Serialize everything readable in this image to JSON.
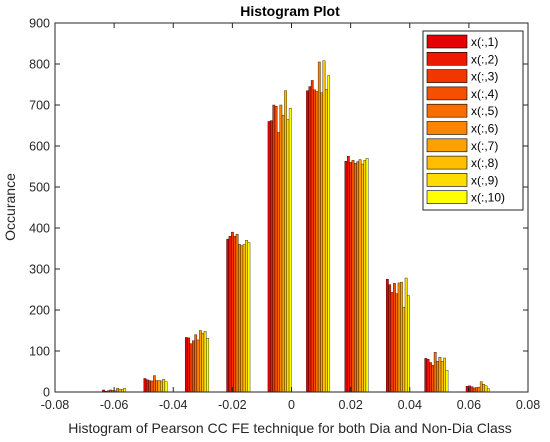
{
  "chart_data": {
    "type": "bar",
    "title": "Histogram Plot",
    "xlabel": "Histogram of Pearson CC FE technique for both Dia and Non-Dia Class",
    "ylabel": "Occurance",
    "xlim": [
      -0.08,
      0.08
    ],
    "ylim": [
      0,
      900
    ],
    "xticks": [
      -0.08,
      -0.06,
      -0.04,
      -0.02,
      0,
      0.02,
      0.04,
      0.06,
      0.08
    ],
    "yticks": [
      0,
      100,
      200,
      300,
      400,
      500,
      600,
      700,
      800,
      900
    ],
    "xtick_labels": [
      "-0.08",
      "-0.06",
      "-0.04",
      "-0.02",
      "0",
      "0.02",
      "0.04",
      "0.06",
      "0.08"
    ],
    "ytick_labels": [
      "0",
      "100",
      "200",
      "300",
      "400",
      "500",
      "600",
      "700",
      "800",
      "900"
    ],
    "grid": false,
    "legend": "top-right",
    "bin_centers": [
      -0.06,
      -0.046,
      -0.032,
      -0.018,
      -0.004,
      0.009,
      0.022,
      0.036,
      0.049,
      0.063
    ],
    "series": [
      {
        "name": "x(:,1)",
        "color": "#e60000",
        "values": [
          5,
          33,
          133,
          373,
          660,
          735,
          563,
          275,
          82,
          14
        ]
      },
      {
        "name": "x(:,2)",
        "color": "#ee1a00",
        "values": [
          2,
          30,
          132,
          380,
          662,
          745,
          575,
          262,
          80,
          15
        ]
      },
      {
        "name": "x(:,3)",
        "color": "#f23600",
        "values": [
          3,
          28,
          118,
          390,
          700,
          760,
          560,
          243,
          72,
          13
        ]
      },
      {
        "name": "x(:,4)",
        "color": "#f55000",
        "values": [
          5,
          27,
          125,
          380,
          697,
          737,
          565,
          265,
          65,
          10
        ]
      },
      {
        "name": "x(:,5)",
        "color": "#f86c00",
        "values": [
          4,
          40,
          140,
          385,
          633,
          733,
          558,
          240,
          97,
          11
        ]
      },
      {
        "name": "x(:,6)",
        "color": "#fa8500",
        "values": [
          3,
          28,
          127,
          360,
          700,
          805,
          562,
          266,
          75,
          12
        ]
      },
      {
        "name": "x(:,7)",
        "color": "#fca200",
        "values": [
          9,
          28,
          150,
          357,
          675,
          730,
          567,
          268,
          85,
          25
        ]
      },
      {
        "name": "x(:,8)",
        "color": "#ffbe00",
        "values": [
          7,
          27,
          143,
          360,
          735,
          808,
          556,
          207,
          75,
          19
        ]
      },
      {
        "name": "x(:,9)",
        "color": "#ffdc00",
        "values": [
          6,
          31,
          148,
          370,
          665,
          738,
          565,
          278,
          83,
          15
        ]
      },
      {
        "name": "x(:,10)",
        "color": "#ffff00",
        "values": [
          9,
          25,
          131,
          365,
          692,
          772,
          570,
          235,
          53,
          8
        ]
      }
    ]
  }
}
